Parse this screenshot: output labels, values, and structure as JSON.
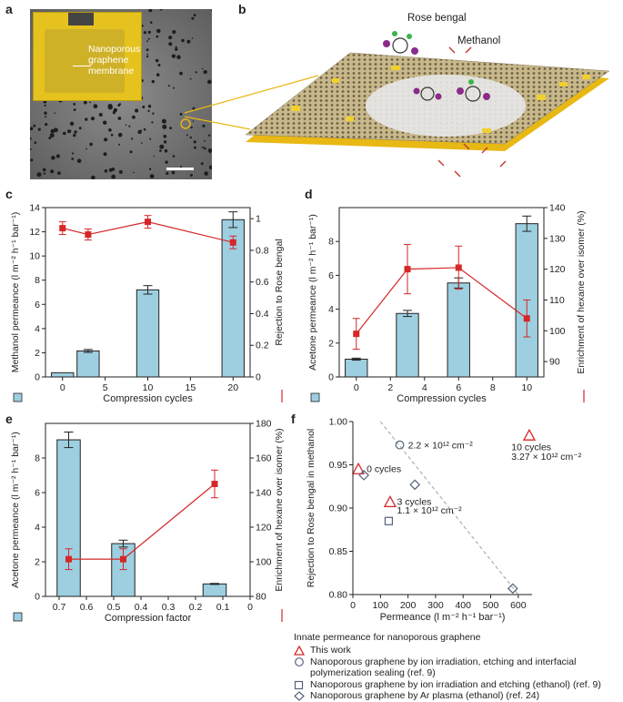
{
  "panels": {
    "a": "a",
    "b": "b",
    "c": "c",
    "d": "d",
    "e": "e",
    "f": "f"
  },
  "panel_a": {
    "inset_label": "Nanoporous graphene membrane",
    "inset_lines": [
      "Nanoporous",
      "graphene",
      "membrane"
    ],
    "colors": {
      "sem_bg": "#7a7a7a",
      "inset_yellow": "#e6c21e"
    }
  },
  "panel_b": {
    "rose_bengal_label": "Rose bengal",
    "methanol_label": "Methanol",
    "colors": {
      "graphene": "#b8a882",
      "substrate": "#e8b814",
      "pore": "#f0d030"
    }
  },
  "colors": {
    "bar": "#9dcfe0",
    "bar_edge": "#222222",
    "line": "#d62728",
    "marker": "#d62728",
    "dashed": "#9aa2ac",
    "legend_triangle": "#d62728",
    "legend_marker": "#56607a"
  },
  "chart_data": [
    {
      "id": "c",
      "type": "bar",
      "xlabel": "Compression cycles",
      "ylabel_left": "Methanol permeance (l m⁻² h⁻¹ bar⁻¹)",
      "ylabel_right": "Rejection to Rose bengal",
      "xlim": [
        -2,
        22
      ],
      "xticks": [
        0,
        5,
        10,
        15,
        20
      ],
      "ylim_left": [
        0,
        14
      ],
      "yticks_left": [
        0,
        2,
        4,
        6,
        8,
        10,
        12,
        14
      ],
      "ylim_right": [
        0,
        1.07
      ],
      "yticks_right": [
        0,
        0.2,
        0.4,
        0.6,
        0.8,
        1.0
      ],
      "bars": {
        "x": [
          0,
          3,
          10,
          20
        ],
        "values": [
          0.35,
          2.15,
          7.2,
          13.0
        ],
        "errors": [
          0,
          0.12,
          0.35,
          0.65
        ],
        "width": 2.6
      },
      "line": {
        "x": [
          0,
          3,
          10,
          20
        ],
        "values": [
          0.94,
          0.9,
          0.98,
          0.85
        ],
        "errors": [
          0.04,
          0.035,
          0.04,
          0.04
        ]
      }
    },
    {
      "id": "d",
      "type": "bar",
      "xlabel": "Compression cycles",
      "ylabel_left": "Acetone permeance (l m⁻² h⁻¹ bar⁻¹)",
      "ylabel_right": "Enrichment of hexane over isomer (%)",
      "xlim": [
        -1,
        11
      ],
      "xticks": [
        0,
        2,
        4,
        6,
        8,
        10
      ],
      "ylim_left": [
        0,
        10
      ],
      "yticks_left": [
        0,
        2,
        4,
        6,
        8
      ],
      "ylim_right": [
        85,
        140
      ],
      "yticks_right": [
        90,
        100,
        110,
        120,
        130,
        140
      ],
      "bars": {
        "x": [
          0,
          3,
          6,
          10
        ],
        "values": [
          1.05,
          3.75,
          5.55,
          9.05
        ],
        "errors": [
          0.06,
          0.18,
          0.3,
          0.45
        ],
        "width": 1.3
      },
      "line": {
        "x": [
          0,
          3,
          6,
          10
        ],
        "values": [
          99,
          120,
          120.5,
          104
        ],
        "errors": [
          5,
          8,
          7,
          6
        ]
      }
    },
    {
      "id": "e",
      "type": "bar",
      "xlabel": "Compression factor",
      "ylabel_left": "Acetone permeance (l m⁻² h⁻¹ bar⁻¹)",
      "ylabel_right": "Enrichment of hexane over isomer (%)",
      "xlim": [
        0.75,
        0
      ],
      "xticks": [
        0.7,
        0.6,
        0.5,
        0.4,
        0.3,
        0.2,
        0.1,
        0
      ],
      "ylim_left": [
        0,
        10
      ],
      "yticks_left": [
        0,
        2,
        4,
        6,
        8
      ],
      "ylim_right": [
        80,
        180
      ],
      "yticks_right": [
        80,
        100,
        120,
        140,
        160,
        180
      ],
      "bars": {
        "x": [
          0.665,
          0.465,
          0.13
        ],
        "values": [
          9.05,
          3.05,
          0.72
        ],
        "errors": [
          0.45,
          0.2,
          0.03
        ],
        "width": 0.085
      },
      "line": {
        "x": [
          0.665,
          0.465,
          0.13
        ],
        "values": [
          101.5,
          101.5,
          145
        ],
        "errors": [
          6,
          6,
          8
        ]
      }
    },
    {
      "id": "f",
      "type": "scatter",
      "xlabel": "Permeance (l m⁻² h⁻¹ bar⁻¹)",
      "ylabel": "Rejection to Rose bengal in methanol",
      "xlim": [
        0,
        650
      ],
      "xticks": [
        0,
        100,
        200,
        300,
        400,
        500,
        600
      ],
      "ylim": [
        0.8,
        1.0
      ],
      "yticks": [
        0.8,
        0.85,
        0.9,
        0.95,
        1.0
      ],
      "series": [
        {
          "name": "This work",
          "marker": "triangle",
          "points": [
            [
              20,
              0.945
            ],
            [
              135,
              0.907
            ],
            [
              640,
              0.984
            ]
          ]
        },
        {
          "name": "Nanoporous graphene by ion irradiation, etching and interfacial polymerization sealing (ref. 9)",
          "marker": "circle",
          "points": [
            [
              170,
              0.973
            ]
          ]
        },
        {
          "name": "Nanoporous graphene by ion irradiation and etching (ethanol) (ref. 9)",
          "marker": "square",
          "points": [
            [
              130,
              0.885
            ]
          ]
        },
        {
          "name": "Nanoporous graphene by Ar plasma (ethanol) (ref. 24)",
          "marker": "diamond",
          "points": [
            [
              40,
              0.938
            ],
            [
              225,
              0.927
            ],
            [
              580,
              0.807
            ]
          ]
        }
      ],
      "trend_line": {
        "x": [
          100,
          600
        ],
        "y": [
          1.0,
          0.8
        ]
      },
      "annotations": [
        {
          "text": "2.2 × 10¹² cm⁻²",
          "x": 200,
          "y": 0.973
        },
        {
          "text": "0 cycles",
          "x": 50,
          "y": 0.946
        },
        {
          "text": "3 cycles",
          "x": 160,
          "y": 0.908
        },
        {
          "text": "1.1 × 10¹² cm⁻²",
          "x": 160,
          "y": 0.898
        },
        {
          "text": "10 cycles",
          "x": 575,
          "y": 0.971
        },
        {
          "text": "3.27 × 10¹² cm⁻²",
          "x": 575,
          "y": 0.96
        }
      ],
      "legend_title": "Innate permeance for nanoporous graphene"
    }
  ]
}
